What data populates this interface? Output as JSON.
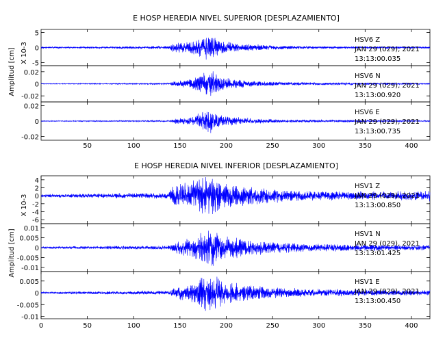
{
  "chart_data": [
    {
      "type": "line",
      "title": "E HOSP HEREDIA NIVEL SUPERIOR [DESPLAZAMIENTO]",
      "ylabel": "Amplitud [cm]",
      "xlim": [
        0,
        420
      ],
      "x_ticks": [
        50,
        100,
        150,
        200,
        250,
        300,
        350,
        400
      ],
      "line_color": "#0000ff",
      "panels": [
        {
          "series_name": "HSV6 Z",
          "date": "JAN 29 (029), 2021",
          "time": "13:13:00.035",
          "scale_label": "X 10-3",
          "ylim": [
            -6,
            6
          ],
          "y_ticks": [
            5,
            0,
            -5
          ],
          "noise": 0.3,
          "peak": 4.5,
          "envelope": [
            [
              0,
              0.05
            ],
            [
              138,
              0.12
            ],
            [
              142,
              0.35
            ],
            [
              160,
              0.45
            ],
            [
              175,
              0.9
            ],
            [
              182,
              1.0
            ],
            [
              195,
              0.55
            ],
            [
              215,
              0.3
            ],
            [
              260,
              0.15
            ],
            [
              300,
              0.1
            ],
            [
              420,
              0.08
            ]
          ]
        },
        {
          "series_name": "HSV6 N",
          "date": "JAN 29 (029), 2021",
          "time": "13:13:00.920",
          "scale_label": "",
          "ylim": [
            -0.03,
            0.03
          ],
          "y_ticks": [
            0.02,
            0.0,
            -0.02
          ],
          "noise": 0.0006,
          "peak": 0.025,
          "envelope": [
            [
              0,
              0.03
            ],
            [
              138,
              0.06
            ],
            [
              145,
              0.2
            ],
            [
              165,
              0.35
            ],
            [
              178,
              0.9
            ],
            [
              183,
              1.0
            ],
            [
              195,
              0.5
            ],
            [
              220,
              0.25
            ],
            [
              260,
              0.12
            ],
            [
              420,
              0.05
            ]
          ]
        },
        {
          "series_name": "HSV6 E",
          "date": "JAN 29 (029), 2021",
          "time": "13:13:00.735",
          "scale_label": "",
          "ylim": [
            -0.025,
            0.025
          ],
          "y_ticks": [
            0.02,
            0.0,
            -0.02
          ],
          "noise": 0.0005,
          "peak": 0.018,
          "envelope": [
            [
              0,
              0.03
            ],
            [
              138,
              0.06
            ],
            [
              145,
              0.2
            ],
            [
              165,
              0.35
            ],
            [
              178,
              0.9
            ],
            [
              183,
              1.0
            ],
            [
              195,
              0.5
            ],
            [
              220,
              0.25
            ],
            [
              260,
              0.12
            ],
            [
              420,
              0.05
            ]
          ]
        }
      ]
    },
    {
      "type": "line",
      "title": "E HOSP HEREDIA NIVEL INFERIOR [DESPLAZAMIENTO]",
      "ylabel": "Amplitud [cm]",
      "xlim": [
        0,
        420
      ],
      "x_ticks": [
        0,
        50,
        100,
        150,
        200,
        250,
        300,
        350,
        400
      ],
      "line_color": "#0000ff",
      "panels": [
        {
          "series_name": "HSV1 Z",
          "date": "JAN 29 (029), 2021",
          "time": "13:13:00.850",
          "scale_label": "X 10-3",
          "ylim": [
            -7,
            5
          ],
          "y_ticks": [
            4,
            2,
            0,
            -2,
            -4,
            -6
          ],
          "noise": 0.3,
          "peak": 5.5,
          "envelope": [
            [
              0,
              0.08
            ],
            [
              138,
              0.15
            ],
            [
              142,
              0.5
            ],
            [
              160,
              0.6
            ],
            [
              175,
              0.95
            ],
            [
              182,
              1.0
            ],
            [
              200,
              0.65
            ],
            [
              220,
              0.45
            ],
            [
              260,
              0.3
            ],
            [
              300,
              0.22
            ],
            [
              380,
              0.2
            ],
            [
              420,
              0.25
            ]
          ]
        },
        {
          "series_name": "HSV1 N",
          "date": "JAN 29 (029), 2021",
          "time": "13:13:01.425",
          "scale_label": "",
          "ylim": [
            -0.012,
            0.012
          ],
          "y_ticks": [
            0.01,
            0.005,
            0.0,
            -0.005,
            -0.01
          ],
          "noise": 0.0003,
          "peak": 0.011,
          "envelope": [
            [
              0,
              0.05
            ],
            [
              138,
              0.1
            ],
            [
              145,
              0.3
            ],
            [
              165,
              0.5
            ],
            [
              178,
              0.95
            ],
            [
              183,
              1.0
            ],
            [
              200,
              0.6
            ],
            [
              220,
              0.4
            ],
            [
              260,
              0.25
            ],
            [
              300,
              0.18
            ],
            [
              420,
              0.12
            ]
          ]
        },
        {
          "series_name": "HSV1 E",
          "date": "JAN 29 (029), 2021",
          "time": "13:13:00.450",
          "scale_label": "",
          "ylim": [
            -0.011,
            0.009
          ],
          "y_ticks": [
            0.005,
            0.0,
            -0.005,
            -0.01
          ],
          "noise": 0.0003,
          "peak": 0.009,
          "envelope": [
            [
              0,
              0.05
            ],
            [
              138,
              0.1
            ],
            [
              145,
              0.3
            ],
            [
              165,
              0.5
            ],
            [
              178,
              0.95
            ],
            [
              183,
              1.0
            ],
            [
              200,
              0.6
            ],
            [
              220,
              0.4
            ],
            [
              260,
              0.25
            ],
            [
              300,
              0.18
            ],
            [
              420,
              0.12
            ]
          ]
        }
      ]
    }
  ]
}
